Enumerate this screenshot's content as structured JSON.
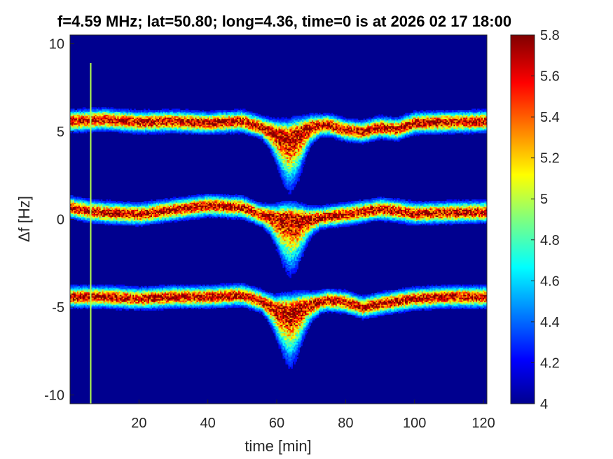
{
  "chart_data": {
    "type": "heatmap",
    "title": "f=4.59 MHz;  lat=50.80; long=4.36, time=0 is at 2026 02 17 18:00",
    "xlabel": "time [min]",
    "ylabel": "Δf [Hz]",
    "xlim": [
      0,
      121
    ],
    "ylim": [
      -10.5,
      10.5
    ],
    "x_ticks": [
      20,
      40,
      60,
      80,
      100,
      120
    ],
    "y_ticks": [
      10,
      5,
      0,
      -5,
      -10
    ],
    "colorbar": {
      "range": [
        4,
        5.8
      ],
      "ticks": [
        "5.8",
        "5.6",
        "5.4",
        "5.2",
        "5",
        "4.8",
        "4.6",
        "4.4",
        "4.2",
        "4"
      ],
      "colormap": "jet"
    },
    "background_level": 4.05,
    "series": [
      {
        "label": "upper band",
        "points": [
          [
            0,
            5.6
          ],
          [
            10,
            5.7
          ],
          [
            20,
            5.55
          ],
          [
            30,
            5.6
          ],
          [
            40,
            5.5
          ],
          [
            50,
            5.6
          ],
          [
            55,
            5.3
          ],
          [
            60,
            4.9
          ],
          [
            63,
            4.7
          ],
          [
            66,
            4.9
          ],
          [
            70,
            5.3
          ],
          [
            75,
            5.4
          ],
          [
            80,
            5.1
          ],
          [
            85,
            5.0
          ],
          [
            90,
            5.25
          ],
          [
            95,
            5.15
          ],
          [
            100,
            5.5
          ],
          [
            110,
            5.55
          ],
          [
            121,
            5.6
          ]
        ]
      },
      {
        "label": "centre band",
        "points": [
          [
            0,
            0.7
          ],
          [
            5,
            0.5
          ],
          [
            10,
            0.4
          ],
          [
            20,
            0.3
          ],
          [
            30,
            0.55
          ],
          [
            40,
            0.8
          ],
          [
            50,
            0.7
          ],
          [
            55,
            0.3
          ],
          [
            60,
            0.1
          ],
          [
            65,
            0.0
          ],
          [
            70,
            0.05
          ],
          [
            80,
            0.3
          ],
          [
            90,
            0.6
          ],
          [
            95,
            0.5
          ],
          [
            100,
            0.35
          ],
          [
            110,
            0.4
          ],
          [
            121,
            0.45
          ]
        ]
      },
      {
        "label": "lower band",
        "points": [
          [
            0,
            -4.4
          ],
          [
            10,
            -4.4
          ],
          [
            20,
            -4.5
          ],
          [
            30,
            -4.4
          ],
          [
            40,
            -4.4
          ],
          [
            50,
            -4.3
          ],
          [
            55,
            -4.6
          ],
          [
            60,
            -5.1
          ],
          [
            64,
            -5.2
          ],
          [
            68,
            -4.9
          ],
          [
            75,
            -4.6
          ],
          [
            80,
            -4.7
          ],
          [
            85,
            -5.0
          ],
          [
            90,
            -4.8
          ],
          [
            100,
            -4.5
          ],
          [
            110,
            -4.4
          ],
          [
            121,
            -4.4
          ]
        ]
      }
    ],
    "vertical_streak_x": 6,
    "spread_dips": [
      {
        "x_range": [
          56,
          72
        ],
        "peak_x": 64,
        "extent_hz": 1.2
      }
    ]
  }
}
